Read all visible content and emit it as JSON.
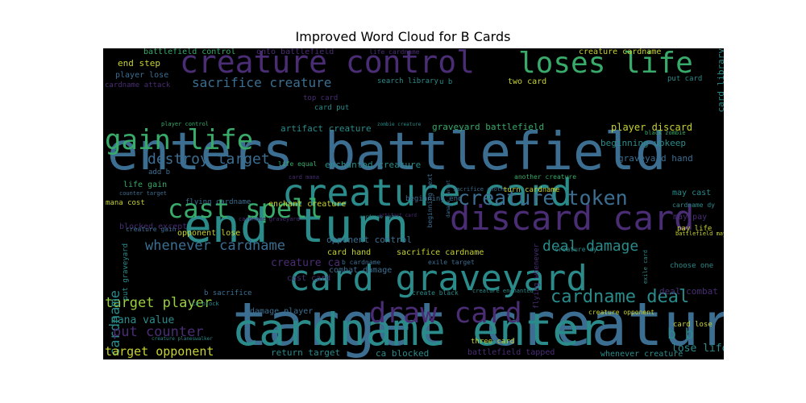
{
  "chart_data": {
    "type": "wordcloud",
    "title": "Improved Word Cloud for B Cards",
    "background": "#000000",
    "palette": {
      "purple": "#4a2d74",
      "blue": "#3c6e91",
      "teal": "#2a8b8a",
      "green": "#38ab6a",
      "lime": "#99cf3e",
      "yellow": "#c7d22e"
    },
    "words": [
      {
        "text": "target creature",
        "color": "blue"
      },
      {
        "text": "enters battlefield",
        "color": "blue"
      },
      {
        "text": "end turn",
        "color": "teal"
      },
      {
        "text": "cardname enter",
        "color": "teal"
      },
      {
        "text": "card graveyard",
        "color": "teal"
      },
      {
        "text": "creature card",
        "color": "teal"
      },
      {
        "text": "discard card",
        "color": "purple"
      },
      {
        "text": "creature control",
        "color": "purple"
      },
      {
        "text": "loses life",
        "color": "green"
      },
      {
        "text": "gain life",
        "color": "green"
      },
      {
        "text": "draw card",
        "color": "purple"
      },
      {
        "text": "cast spell",
        "color": "green"
      },
      {
        "text": "creature token",
        "color": "blue"
      },
      {
        "text": "cardname deal",
        "color": "teal"
      },
      {
        "text": "sacrifice creature",
        "color": "blue"
      },
      {
        "text": "destroy target",
        "color": "blue"
      },
      {
        "text": "whenever cardname",
        "color": "blue"
      },
      {
        "text": "deal damage",
        "color": "teal"
      },
      {
        "text": "target player",
        "color": "lime"
      },
      {
        "text": "counter cardname",
        "color": "teal"
      },
      {
        "text": "put counter",
        "color": "purple"
      },
      {
        "text": "target opponent",
        "color": "yellow"
      },
      {
        "text": "b b",
        "color": "teal"
      },
      {
        "text": "mana value",
        "color": "teal"
      },
      {
        "text": "lose life",
        "color": "teal"
      },
      {
        "text": "end step",
        "color": "yellow"
      },
      {
        "text": "player lose",
        "color": "blue"
      },
      {
        "text": "two card",
        "color": "yellow"
      },
      {
        "text": "player discard",
        "color": "yellow"
      },
      {
        "text": "beginning upkeep",
        "color": "teal"
      },
      {
        "text": "graveyard hand",
        "color": "blue"
      },
      {
        "text": "graveyard battlefield",
        "color": "green"
      },
      {
        "text": "artifact creature",
        "color": "teal"
      },
      {
        "text": "enchanted creature",
        "color": "teal"
      },
      {
        "text": "enchant creature",
        "color": "yellow"
      },
      {
        "text": "opponent lose",
        "color": "yellow"
      },
      {
        "text": "opponent control",
        "color": "blue"
      },
      {
        "text": "combat damage",
        "color": "blue"
      },
      {
        "text": "card hand",
        "color": "yellow"
      },
      {
        "text": "sacrifice cardname",
        "color": "yellow"
      },
      {
        "text": "creature ca",
        "color": "purple"
      },
      {
        "text": "cast card",
        "color": "purple"
      },
      {
        "text": "damage player",
        "color": "blue"
      },
      {
        "text": "return target",
        "color": "teal"
      },
      {
        "text": "ca blocked",
        "color": "teal"
      },
      {
        "text": "battlefield tapped",
        "color": "purple"
      },
      {
        "text": "whenever creature",
        "color": "teal"
      },
      {
        "text": "three card",
        "color": "yellow"
      },
      {
        "text": "create black",
        "color": "teal"
      },
      {
        "text": "life gain",
        "color": "green"
      },
      {
        "text": "mana cost",
        "color": "yellow"
      },
      {
        "text": "may cast",
        "color": "teal"
      },
      {
        "text": "may pay",
        "color": "purple"
      },
      {
        "text": "pay life",
        "color": "yellow"
      },
      {
        "text": "cardname dy",
        "color": "teal"
      },
      {
        "text": "card library",
        "color": "teal"
      },
      {
        "text": "choose one",
        "color": "teal"
      },
      {
        "text": "creature dy",
        "color": "teal"
      },
      {
        "text": "deal combat",
        "color": "purple"
      },
      {
        "text": "card lose",
        "color": "yellow"
      },
      {
        "text": "creature opponent",
        "color": "yellow"
      },
      {
        "text": "b sacrifice",
        "color": "blue"
      },
      {
        "text": "battlefield control",
        "color": "green"
      },
      {
        "text": "onto battlefield",
        "color": "purple"
      },
      {
        "text": "life cardname",
        "color": "purple"
      },
      {
        "text": "creature cardname",
        "color": "yellow"
      },
      {
        "text": "put card",
        "color": "teal"
      },
      {
        "text": "search library",
        "color": "teal"
      },
      {
        "text": "u b",
        "color": "teal"
      },
      {
        "text": "cardname attack",
        "color": "purple"
      },
      {
        "text": "top card",
        "color": "purple"
      },
      {
        "text": "card put",
        "color": "teal"
      },
      {
        "text": "player control",
        "color": "green"
      },
      {
        "text": "zombie creature",
        "color": "teal"
      },
      {
        "text": "black zombie",
        "color": "green"
      },
      {
        "text": "life equal",
        "color": "green"
      },
      {
        "text": "beginning next",
        "color": "blue"
      },
      {
        "text": "damage target",
        "color": "blue"
      },
      {
        "text": "another creature",
        "color": "green"
      },
      {
        "text": "card mana",
        "color": "purple"
      },
      {
        "text": "add b",
        "color": "blue"
      },
      {
        "text": "counter target",
        "color": "blue"
      },
      {
        "text": "flying cardname",
        "color": "blue"
      },
      {
        "text": "sacrifice another",
        "color": "blue"
      },
      {
        "text": "turn cardname",
        "color": "yellow"
      },
      {
        "text": "beginning end",
        "color": "blue"
      },
      {
        "text": "blocked except",
        "color": "purple"
      },
      {
        "text": "cardname graveyard",
        "color": "purple"
      },
      {
        "text": "creature gain",
        "color": "blue"
      },
      {
        "text": "exile target",
        "color": "blue"
      },
      {
        "text": "b cardname",
        "color": "blue"
      },
      {
        "text": "put graveyard",
        "color": "teal"
      },
      {
        "text": "creature enchanted",
        "color": "teal"
      },
      {
        "text": "flying whenever",
        "color": "purple"
      },
      {
        "text": "exile card",
        "color": "teal"
      },
      {
        "text": "cardname get",
        "color": "teal"
      },
      {
        "text": "ca block",
        "color": "teal"
      },
      {
        "text": "creature planeswalker",
        "color": "teal"
      },
      {
        "text": "battlefield may",
        "color": "yellow"
      },
      {
        "text": "artifact card",
        "color": "purple"
      }
    ]
  }
}
